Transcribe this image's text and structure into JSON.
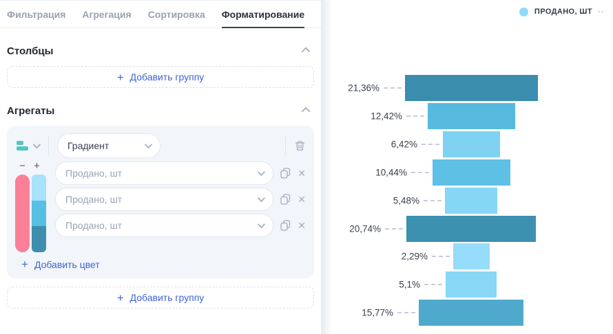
{
  "tabs": [
    {
      "label": "Фильтрация",
      "active": false
    },
    {
      "label": "Агрегация",
      "active": false
    },
    {
      "label": "Сортировка",
      "active": false
    },
    {
      "label": "Форматирование",
      "active": true
    }
  ],
  "columns_section": {
    "title": "Столбцы",
    "add_group_label": "Добавить группу"
  },
  "aggregates_section": {
    "title": "Агрегаты",
    "type_icon_color": "#53C6BF",
    "gradient_select_value": "Градиент",
    "remove_color_bar": "#FA8097",
    "gradient_stops": [
      "#A8E2FB",
      "#57BEE4",
      "#3E8FAE"
    ],
    "inputs": [
      {
        "placeholder": "Продано, шт"
      },
      {
        "placeholder": "Продано, шт"
      },
      {
        "placeholder": "Продано, шт"
      }
    ],
    "add_color_label": "Добавить цвет",
    "add_group_label": "Добавить группу"
  },
  "chart_data": {
    "type": "bar",
    "subtype": "centered-funnel-horizontal",
    "title": "",
    "legend": {
      "label": "ПРОДАНО, ШТ",
      "dot_color": "#8ED9F8",
      "more": "··",
      "position": "top-right"
    },
    "series": [
      {
        "name": "Продано, шт",
        "labels": [
          "21,36%",
          "12,42%",
          "6,42%",
          "10,44%",
          "5,48%",
          "20,74%",
          "2,29%",
          "5,1%",
          "15,77%"
        ],
        "values": [
          21.36,
          12.42,
          6.42,
          10.44,
          5.48,
          20.74,
          2.29,
          5.1,
          15.77
        ],
        "colors": [
          "#3A8DAD",
          "#57B9DE",
          "#7FD2F2",
          "#5FC0E6",
          "#86D6F5",
          "#3C90B0",
          "#97DCFA",
          "#89D7F6",
          "#4FA9CC"
        ]
      }
    ],
    "value_unit": "%",
    "grid": false,
    "axes": "none"
  }
}
